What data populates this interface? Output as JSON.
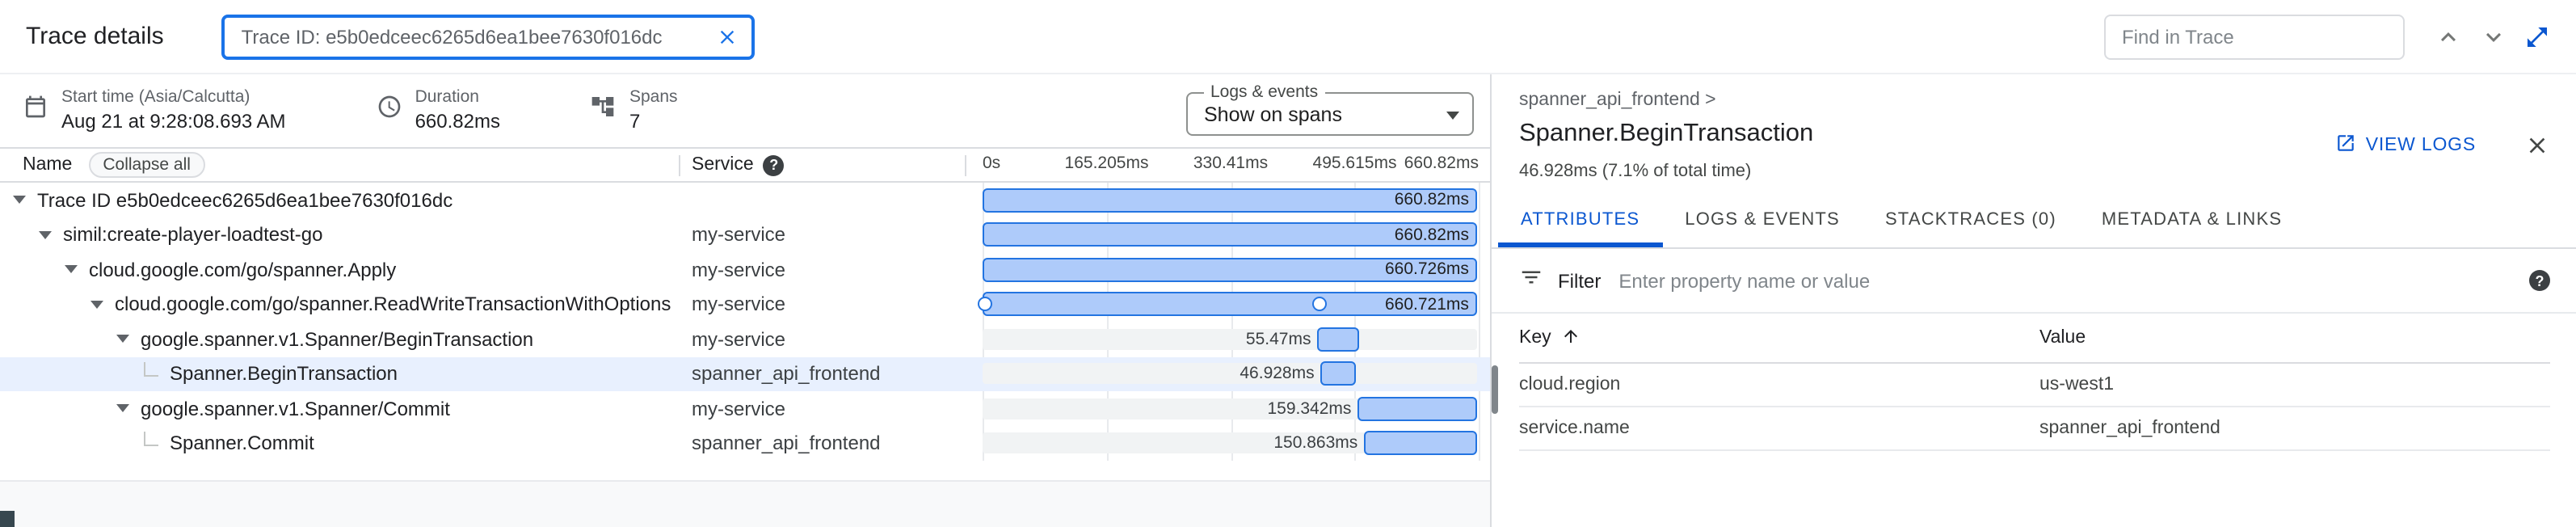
{
  "header": {
    "title": "Trace details",
    "trace_search_value": "Trace ID: e5b0edceec6265d6ea1bee7630f016dc",
    "find_placeholder": "Find in Trace"
  },
  "summary": {
    "start_label": "Start time (Asia/Calcutta)",
    "start_value": "Aug 21 at 9:28:08.693 AM",
    "duration_label": "Duration",
    "duration_value": "660.82ms",
    "spans_label": "Spans",
    "spans_value": "7",
    "logs_legend": "Logs & events",
    "logs_value": "Show on spans"
  },
  "grid": {
    "name_header": "Name",
    "collapse_all_label": "Collapse all",
    "service_header": "Service"
  },
  "icons": {
    "calendar": "calendar-icon",
    "timer": "timer-icon",
    "spans": "spans-tree-icon",
    "help": "question-circle-icon",
    "clear": "clear-x-icon",
    "chevron_up": "chevron-up-icon",
    "chevron_down": "chevron-down-icon",
    "expand": "open-in-full-icon",
    "open_in_new": "open-in-new-icon",
    "close": "close-x-icon",
    "filter": "filter-icon",
    "sort_asc": "arrow-up-icon"
  },
  "chart_data": {
    "type": "gantt",
    "title": "Trace span timeline",
    "total_ms": 660.82,
    "ticks": [
      "0s",
      "165.205ms",
      "330.41ms",
      "495.615ms",
      "660.82ms"
    ],
    "rows": [
      {
        "name": "Trace ID e5b0edceec6265d6ea1bee7630f016dc",
        "indent": 0,
        "expandable": true,
        "service": "",
        "start_ms": 0,
        "duration_ms": 660.82,
        "duration_label": "660.82ms",
        "selected": false,
        "events": []
      },
      {
        "name": "simil:create-player-loadtest-go",
        "indent": 1,
        "expandable": true,
        "service": "my-service",
        "start_ms": 0,
        "duration_ms": 660.82,
        "duration_label": "660.82ms",
        "selected": false,
        "events": []
      },
      {
        "name": "cloud.google.com/go/spanner.Apply",
        "indent": 2,
        "expandable": true,
        "service": "my-service",
        "start_ms": 0,
        "duration_ms": 660.726,
        "duration_label": "660.726ms",
        "selected": false,
        "events": []
      },
      {
        "name": "cloud.google.com/go/spanner.ReadWriteTransactionWithOptions",
        "indent": 3,
        "expandable": true,
        "service": "my-service",
        "start_ms": 0,
        "duration_ms": 660.721,
        "duration_label": "660.721ms",
        "selected": false,
        "events": [
          4,
          450
        ]
      },
      {
        "name": "google.spanner.v1.Spanner/BeginTransaction",
        "indent": 4,
        "expandable": true,
        "service": "my-service",
        "start_ms": 447.5,
        "duration_ms": 55.47,
        "duration_label": "55.47ms",
        "selected": false,
        "events": []
      },
      {
        "name": "Spanner.BeginTransaction",
        "indent": 5,
        "expandable": false,
        "service": "spanner_api_frontend",
        "start_ms": 452.0,
        "duration_ms": 46.928,
        "duration_label": "46.928ms",
        "selected": true,
        "events": []
      },
      {
        "name": "google.spanner.v1.Spanner/Commit",
        "indent": 4,
        "expandable": true,
        "service": "my-service",
        "start_ms": 501.4,
        "duration_ms": 159.342,
        "duration_label": "159.342ms",
        "selected": false,
        "events": []
      },
      {
        "name": "Spanner.Commit",
        "indent": 5,
        "expandable": false,
        "service": "spanner_api_frontend",
        "start_ms": 509.9,
        "duration_ms": 150.863,
        "duration_label": "150.863ms",
        "selected": false,
        "events": []
      }
    ]
  },
  "detail": {
    "breadcrumb": "spanner_api_frontend >",
    "view_logs_label": "VIEW LOGS",
    "title": "Spanner.BeginTransaction",
    "subtitle": "46.928ms (7.1% of total time)",
    "tabs": [
      {
        "label": "ATTRIBUTES",
        "active": true
      },
      {
        "label": "LOGS & EVENTS",
        "active": false
      },
      {
        "label": "STACKTRACES (0)",
        "active": false
      },
      {
        "label": "METADATA & LINKS",
        "active": false
      }
    ],
    "filter_label": "Filter",
    "filter_placeholder": "Enter property name or value",
    "attributes": {
      "key_header": "Key",
      "value_header": "Value",
      "rows": [
        {
          "key": "cloud.region",
          "value": "us-west1"
        },
        {
          "key": "service.name",
          "value": "spanner_api_frontend"
        }
      ]
    }
  },
  "colors": {
    "accent_blue": "#1a73e8",
    "link_blue": "#0b57d0",
    "bar_fill": "#aecbfa",
    "bar_border": "#2374e1",
    "selected_row": "#e8f0fe",
    "track_gray": "#f1f3f4"
  }
}
